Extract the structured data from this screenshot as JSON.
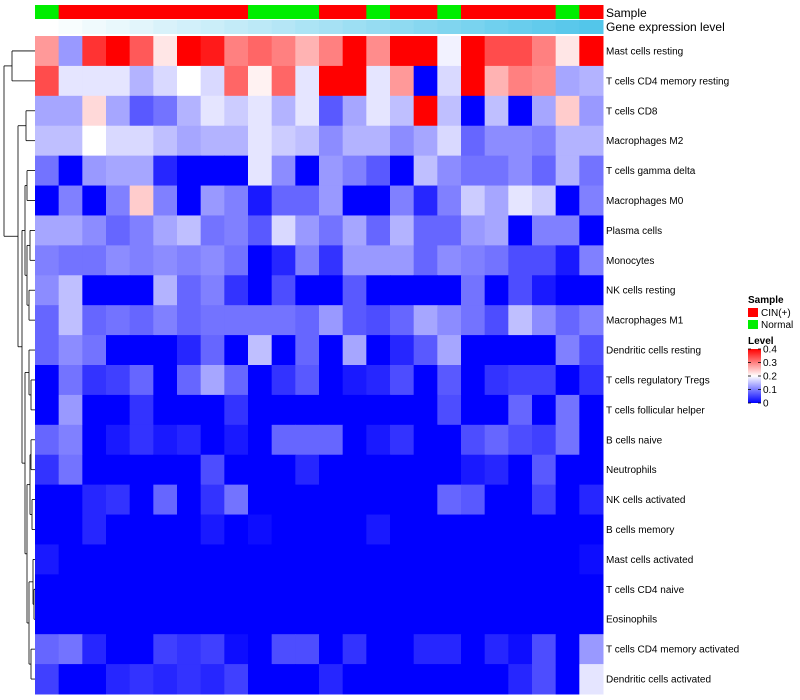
{
  "chart_data": {
    "type": "heatmap",
    "title": "",
    "annotation_labels": {
      "sample": "Sample",
      "expression": "Gene expression level"
    },
    "colors": {
      "cin": "#ff0000",
      "normal": "#00ee00",
      "expr_low": "#ffffff",
      "expr_high": "#53c6ea",
      "low": "#0000ff",
      "mid": "#ffffff",
      "high": "#ff0000"
    },
    "columns": 24,
    "sample_groups": [
      "Normal",
      "CIN(+)",
      "CIN(+)",
      "CIN(+)",
      "CIN(+)",
      "CIN(+)",
      "CIN(+)",
      "CIN(+)",
      "CIN(+)",
      "Normal",
      "Normal",
      "Normal",
      "CIN(+)",
      "CIN(+)",
      "Normal",
      "CIN(+)",
      "CIN(+)",
      "Normal",
      "CIN(+)",
      "CIN(+)",
      "CIN(+)",
      "CIN(+)",
      "Normal",
      "CIN(+)"
    ],
    "expression_levels": [
      0.0,
      0.04,
      0.09,
      0.13,
      0.17,
      0.22,
      0.26,
      0.3,
      0.35,
      0.39,
      0.43,
      0.48,
      0.52,
      0.57,
      0.61,
      0.65,
      0.7,
      0.74,
      0.78,
      0.83,
      0.87,
      0.91,
      0.96,
      1.0
    ],
    "rows": [
      {
        "label": "Mast cells resting",
        "values": [
          0.28,
          0.12,
          0.36,
          0.4,
          0.33,
          0.22,
          0.4,
          0.38,
          0.3,
          0.32,
          0.3,
          0.26,
          0.3,
          0.4,
          0.29,
          0.4,
          0.4,
          0.19,
          0.4,
          0.34,
          0.34,
          0.3,
          0.22,
          0.4
        ]
      },
      {
        "label": "T cells CD4 memory resting",
        "values": [
          0.34,
          0.18,
          0.18,
          0.18,
          0.14,
          0.17,
          0.2,
          0.17,
          0.32,
          0.21,
          0.32,
          0.18,
          0.4,
          0.4,
          0.18,
          0.28,
          0.0,
          0.17,
          0.4,
          0.26,
          0.3,
          0.29,
          0.13,
          0.14
        ]
      },
      {
        "label": "T cells CD8",
        "values": [
          0.13,
          0.13,
          0.23,
          0.13,
          0.07,
          0.09,
          0.14,
          0.18,
          0.16,
          0.18,
          0.14,
          0.18,
          0.07,
          0.13,
          0.18,
          0.15,
          0.4,
          0.15,
          0.0,
          0.15,
          0.0,
          0.13,
          0.24,
          0.12
        ]
      },
      {
        "label": "Macrophages M2",
        "values": [
          0.15,
          0.15,
          0.2,
          0.17,
          0.17,
          0.15,
          0.13,
          0.14,
          0.14,
          0.18,
          0.16,
          0.15,
          0.11,
          0.14,
          0.14,
          0.11,
          0.13,
          0.17,
          0.08,
          0.11,
          0.11,
          0.1,
          0.14,
          0.14
        ]
      },
      {
        "label": "T cells gamma delta",
        "values": [
          0.09,
          0.0,
          0.12,
          0.13,
          0.13,
          0.03,
          0.0,
          0.0,
          0.0,
          0.18,
          0.11,
          0.0,
          0.12,
          0.1,
          0.07,
          0.0,
          0.15,
          0.11,
          0.09,
          0.09,
          0.11,
          0.08,
          0.14,
          0.09
        ]
      },
      {
        "label": "Macrophages M0",
        "values": [
          0.0,
          0.1,
          0.0,
          0.1,
          0.24,
          0.1,
          0.0,
          0.12,
          0.1,
          0.02,
          0.08,
          0.08,
          0.12,
          0.0,
          0.0,
          0.1,
          0.03,
          0.1,
          0.16,
          0.13,
          0.18,
          0.16,
          0.0,
          0.1
        ]
      },
      {
        "label": "Plasma cells",
        "values": [
          0.13,
          0.13,
          0.11,
          0.08,
          0.1,
          0.13,
          0.15,
          0.09,
          0.1,
          0.07,
          0.17,
          0.12,
          0.09,
          0.13,
          0.08,
          0.14,
          0.08,
          0.08,
          0.12,
          0.13,
          0.0,
          0.1,
          0.1,
          0.0
        ]
      },
      {
        "label": "Monocytes",
        "values": [
          0.1,
          0.09,
          0.09,
          0.11,
          0.1,
          0.11,
          0.1,
          0.11,
          0.09,
          0.0,
          0.03,
          0.1,
          0.04,
          0.12,
          0.12,
          0.12,
          0.08,
          0.11,
          0.1,
          0.09,
          0.06,
          0.06,
          0.02,
          0.1
        ]
      },
      {
        "label": "NK cells resting",
        "values": [
          0.11,
          0.15,
          0.0,
          0.0,
          0.0,
          0.14,
          0.08,
          0.1,
          0.04,
          0.0,
          0.06,
          0.0,
          0.0,
          0.07,
          0.0,
          0.0,
          0.0,
          0.0,
          0.09,
          0.0,
          0.06,
          0.02,
          0.0,
          0.0
        ]
      },
      {
        "label": "Macrophages M1",
        "values": [
          0.08,
          0.15,
          0.08,
          0.09,
          0.08,
          0.1,
          0.08,
          0.09,
          0.09,
          0.09,
          0.09,
          0.08,
          0.12,
          0.07,
          0.06,
          0.08,
          0.13,
          0.11,
          0.09,
          0.06,
          0.15,
          0.11,
          0.08,
          0.1
        ]
      },
      {
        "label": "Dendritic cells resting",
        "values": [
          0.08,
          0.11,
          0.09,
          0.0,
          0.0,
          0.0,
          0.03,
          0.08,
          0.0,
          0.15,
          0.0,
          0.08,
          0.0,
          0.13,
          0.0,
          0.03,
          0.07,
          0.13,
          0.0,
          0.0,
          0.0,
          0.0,
          0.1,
          0.06
        ]
      },
      {
        "label": "T cells regulatory  Tregs",
        "values": [
          0.0,
          0.09,
          0.04,
          0.05,
          0.08,
          0.0,
          0.08,
          0.13,
          0.08,
          0.0,
          0.04,
          0.07,
          0.0,
          0.02,
          0.03,
          0.06,
          0.0,
          0.07,
          0.0,
          0.04,
          0.05,
          0.05,
          0.0,
          0.04
        ]
      },
      {
        "label": "T cells follicular helper",
        "values": [
          0.0,
          0.12,
          0.0,
          0.0,
          0.04,
          0.0,
          0.0,
          0.0,
          0.04,
          0.0,
          0.0,
          0.0,
          0.0,
          0.0,
          0.0,
          0.0,
          0.0,
          0.06,
          0.0,
          0.0,
          0.08,
          0.0,
          0.09,
          0.0
        ]
      },
      {
        "label": "B cells naive",
        "values": [
          0.08,
          0.1,
          0.0,
          0.02,
          0.04,
          0.02,
          0.03,
          0.0,
          0.02,
          0.0,
          0.08,
          0.08,
          0.08,
          0.0,
          0.02,
          0.04,
          0.0,
          0.0,
          0.06,
          0.08,
          0.06,
          0.05,
          0.09,
          0.0
        ]
      },
      {
        "label": "Neutrophils",
        "values": [
          0.04,
          0.09,
          0.0,
          0.0,
          0.0,
          0.0,
          0.0,
          0.06,
          0.0,
          0.0,
          0.0,
          0.03,
          0.0,
          0.0,
          0.0,
          0.0,
          0.0,
          0.0,
          0.02,
          0.03,
          0.0,
          0.07,
          0.0,
          0.0
        ]
      },
      {
        "label": "NK cells activated",
        "values": [
          0.0,
          0.0,
          0.03,
          0.04,
          0.0,
          0.08,
          0.0,
          0.04,
          0.09,
          0.0,
          0.0,
          0.0,
          0.0,
          0.0,
          0.0,
          0.0,
          0.0,
          0.08,
          0.07,
          0.0,
          0.0,
          0.05,
          0.0,
          0.03
        ]
      },
      {
        "label": "B cells memory",
        "values": [
          0.0,
          0.0,
          0.03,
          0.0,
          0.0,
          0.0,
          0.0,
          0.02,
          0.0,
          0.01,
          0.0,
          0.0,
          0.0,
          0.0,
          0.02,
          0.0,
          0.0,
          0.0,
          0.0,
          0.0,
          0.0,
          0.0,
          0.0,
          0.0
        ]
      },
      {
        "label": "Mast cells activated",
        "values": [
          0.02,
          0.0,
          0.0,
          0.0,
          0.0,
          0.0,
          0.0,
          0.0,
          0.0,
          0.0,
          0.0,
          0.0,
          0.0,
          0.0,
          0.0,
          0.0,
          0.0,
          0.0,
          0.0,
          0.0,
          0.0,
          0.0,
          0.0,
          0.01
        ]
      },
      {
        "label": "T cells CD4 naive",
        "values": [
          0.0,
          0.0,
          0.0,
          0.0,
          0.0,
          0.0,
          0.0,
          0.0,
          0.0,
          0.0,
          0.0,
          0.0,
          0.0,
          0.0,
          0.0,
          0.0,
          0.0,
          0.0,
          0.0,
          0.0,
          0.0,
          0.0,
          0.0,
          0.0
        ]
      },
      {
        "label": "Eosinophils",
        "values": [
          0.0,
          0.0,
          0.0,
          0.0,
          0.0,
          0.0,
          0.0,
          0.0,
          0.0,
          0.0,
          0.0,
          0.0,
          0.0,
          0.0,
          0.0,
          0.0,
          0.0,
          0.0,
          0.0,
          0.0,
          0.0,
          0.0,
          0.0,
          0.0
        ]
      },
      {
        "label": "T cells CD4 memory activated",
        "values": [
          0.08,
          0.09,
          0.03,
          0.0,
          0.0,
          0.05,
          0.04,
          0.05,
          0.01,
          0.0,
          0.06,
          0.06,
          0.0,
          0.04,
          0.0,
          0.0,
          0.03,
          0.03,
          0.0,
          0.03,
          0.01,
          0.06,
          0.0,
          0.12
        ]
      },
      {
        "label": "Dendritic cells activated",
        "values": [
          0.05,
          0.0,
          0.0,
          0.03,
          0.04,
          0.03,
          0.04,
          0.03,
          0.05,
          0.0,
          0.0,
          0.0,
          0.03,
          0.0,
          0.0,
          0.0,
          0.0,
          0.0,
          0.0,
          0.0,
          0.03,
          0.06,
          0.0,
          0.18
        ]
      }
    ],
    "legend": {
      "sample_title": "Sample",
      "sample_entries": [
        "CIN(+)",
        "Normal"
      ],
      "level_title": "Level",
      "level_ticks": [
        0.4,
        0.3,
        0.2,
        0.1,
        0
      ],
      "level_range": [
        0,
        0.4
      ]
    }
  }
}
